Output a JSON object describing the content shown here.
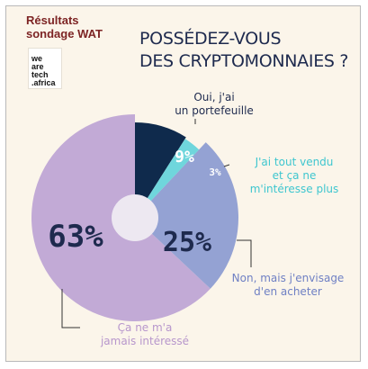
{
  "header": {
    "survey_line1": "Résultats",
    "survey_line2": "sondage WAT",
    "logo_lines": [
      "we",
      "are",
      "tech",
      ".africa"
    ],
    "title_line1": "POSSÉDEZ-VOUS",
    "title_line2": "DES CRYPTOMONNAIES ?"
  },
  "colors": {
    "background": "#fbf5ea",
    "brand_red": "#7d2424",
    "title": "#1e2a4e",
    "slice_never": "#c2aad6",
    "slice_wallet": "#0f2a4c",
    "slice_sold": "#6fd6dc",
    "slice_considering": "#94a2d3",
    "hole": "#ede8f1"
  },
  "chart_data": {
    "type": "pie",
    "title": "POSSÉDEZ-VOUS DES CRYPTOMONNAIES ?",
    "slices": [
      {
        "label_lines": [
          "Oui, j'ai",
          "un portefeuille"
        ],
        "value": 9,
        "display": "9%",
        "color": "#0f2a4c",
        "label_color": "#1e2a4e"
      },
      {
        "label_lines": [
          "J'ai tout vendu",
          "et ça ne",
          "m'intéresse plus"
        ],
        "value": 3,
        "display": "3%",
        "color": "#6fd6dc",
        "label_color": "#3ec6cf"
      },
      {
        "label_lines": [
          "Non, mais j'envisage",
          "d'en acheter"
        ],
        "value": 25,
        "display": "25%",
        "color": "#94a2d3",
        "label_color": "#6f80c4"
      },
      {
        "label_lines": [
          "Ça ne m'a",
          "jamais intéressé"
        ],
        "value": 63,
        "display": "63%",
        "color": "#c2aad6",
        "label_color": "#b796cc"
      }
    ]
  }
}
